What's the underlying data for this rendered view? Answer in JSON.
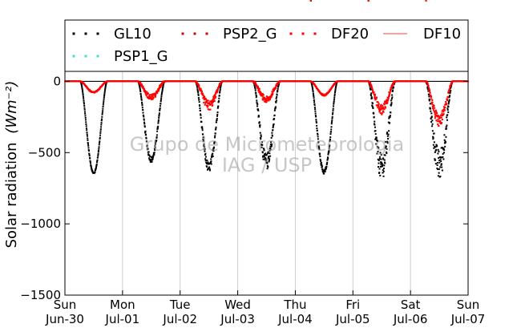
{
  "chart_data": {
    "type": "scatter",
    "title": "",
    "ylabel_text": "Solar radiation",
    "ylabel_unit": "(Wm⁻²)",
    "ylim": [
      -1500,
      70
    ],
    "yticks": [
      0,
      -500,
      -1000,
      -1500
    ],
    "ytick_labels": [
      "0",
      "−500",
      "−1000",
      "−1500"
    ],
    "xlim": [
      0,
      7
    ],
    "xticks": [
      {
        "pos": 0,
        "day": "Sun",
        "date": "Jun-30"
      },
      {
        "pos": 1,
        "day": "Mon",
        "date": "Jul-01"
      },
      {
        "pos": 2,
        "day": "Tue",
        "date": "Jul-02"
      },
      {
        "pos": 3,
        "day": "Wed",
        "date": "Jul-03"
      },
      {
        "pos": 4,
        "day": "Thu",
        "date": "Jul-04"
      },
      {
        "pos": 5,
        "day": "Fri",
        "date": "Jul-05"
      },
      {
        "pos": 6,
        "day": "Sat",
        "date": "Jul-06"
      },
      {
        "pos": 7,
        "day": "Sun",
        "date": "Jul-07"
      }
    ],
    "grid_x": true,
    "legend_placement": "top",
    "watermark": [
      "Grupo de Micrometeorologia",
      "IAG / USP"
    ],
    "series": [
      {
        "name": "GL10",
        "style": "dots",
        "color": "#000000",
        "days": [
          {
            "day": 0.5,
            "peak": -650,
            "noise": 0.02
          },
          {
            "day": 1.5,
            "peak": -570,
            "noise": 0.08
          },
          {
            "day": 2.5,
            "peak": -640,
            "noise": 0.12
          },
          {
            "day": 3.5,
            "peak": -620,
            "noise": 0.2
          },
          {
            "day": 4.5,
            "peak": -650,
            "noise": 0.05
          },
          {
            "day": 5.5,
            "peak": -700,
            "noise": 0.3
          },
          {
            "day": 6.5,
            "peak": -700,
            "noise": 0.35
          }
        ]
      },
      {
        "name": "PSP2_G",
        "style": "dots",
        "color": "#d40000",
        "days": []
      },
      {
        "name": "DF20",
        "style": "dots",
        "color": "#ff0000",
        "days": [
          {
            "day": 0.5,
            "peak": -80,
            "noise": 0.1
          },
          {
            "day": 1.5,
            "peak": -130,
            "noise": 0.3
          },
          {
            "day": 2.5,
            "peak": -200,
            "noise": 0.35
          },
          {
            "day": 3.5,
            "peak": -150,
            "noise": 0.3
          },
          {
            "day": 4.5,
            "peak": -100,
            "noise": 0.1
          },
          {
            "day": 5.5,
            "peak": -230,
            "noise": 0.35
          },
          {
            "day": 6.5,
            "peak": -320,
            "noise": 0.3
          }
        ]
      },
      {
        "name": "DF10",
        "style": "line",
        "color": "#ff6666",
        "days": []
      },
      {
        "name": "PSP1_G",
        "style": "dots",
        "color": "#40e0d0",
        "days": []
      }
    ]
  }
}
